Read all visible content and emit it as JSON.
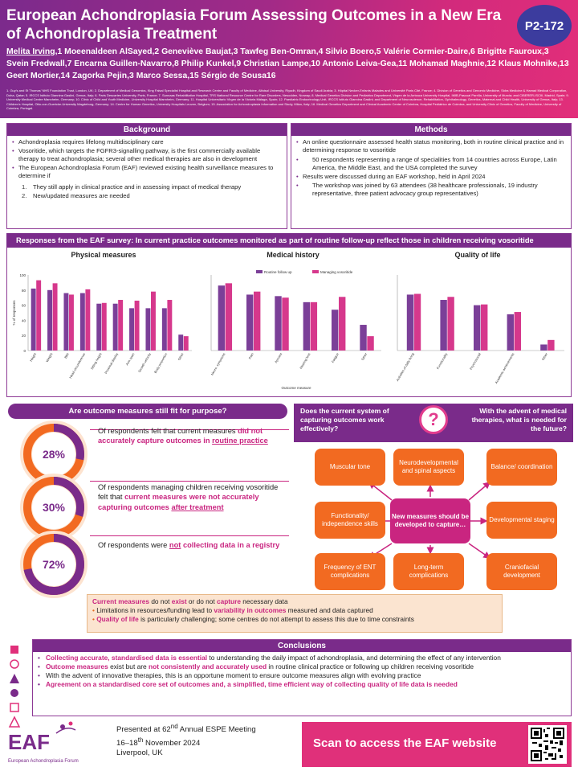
{
  "header": {
    "title": "European Achondroplasia Forum Assessing Outcomes in a New Era of Achondroplasia Treatment",
    "poster_id": "P2-172",
    "first_author": "Melita Irving,",
    "authors_rest": "1 Moeenaldeen AlSayed,2 Geneviève Baujat,3 Tawfeg Ben-Omran,4 Silvio Boero,5 Valérie Cormier-Daire,6 Brigitte Fauroux,3 Svein Fredwall,7 Encarna Guillen-Navarro,8 Philip Kunkel,9 Christian Lampe,10 Antonio Leiva-Gea,11 Mohamad Maghnie,12 Klaus Mohnike,13 Geert Mortier,14 Zagorka Pejin,3 Marco Sessa,15 Sérgio de Sousa16",
    "affiliations": "1. Guy's and St Thomas' NHS Foundation Trust, London, UK; 2. Department of Medical Genomics, King Faisal Specialist Hospital and Research Centre and Faculty of Medicine, Alfaisal University, Riyadh, Kingdom of Saudi Arabia; 3. Hôpital Necker-Enfants Malades and Université Paris Cité, France; 4. Division of Genetics and Genomic Medicine, Sidra Medicine & Hamad Medical Corporation, Doha, Qatar; 5. IRCCS Istituto Giannina Gaslini, Genoa, Italy; 6. Paris Descartes University, Paris, France; 7. Sunnaas Rehabilitation Hospital, TRS National Resource Centre for Rare Disorders, Nesodden, Norway; 8. Medical Genetics Division and Pediatrics Department, Virgen de la Arrixaca University Hospital, IMIB-Pascual Parrilla, University of Murcia; and CIBERER-ISCIII, Madrid, Spain; 9. University Medical Centre Mannheim, Germany; 10. Clinic of Child and Youth Medicine, University Hospital Mannheim, Germany; 11. Hospital Universitario Virgen de la Victoria Málaga, Spain; 12. Paediatric Endocrinology Unit, IRCCS Istituto Giannina Gaslini; and Department of Neuroscience, Rehabilitation, Ophthalmology, Genetics, Maternal and Child Health, University of Genoa, Italy; 13. Children's Hospital, Otto-von-Guericke-University Magdeburg, Germany; 14. Centre for Human Genetics, University Hospitals Leuven, Belgium; 15. Association for Achondroplasia Information and Study, Milan, Italy; 16. Medical Genetics Department and Clinical Academic Center of Coimbra, Hospital Pediátrico de Coimbra, and University Clinic of Genetics, Faculty of Medicine, University of Coimbra, Portugal."
  },
  "background": {
    "title": "Background",
    "b1": "Achondroplasia requires lifelong multidisciplinary care",
    "b2": "Vosoritide, which targets the FGFR3-signalling pathway, is the first commercially available therapy to treat achondroplasia; several other medical therapies are also in development",
    "b3": "The European Achondroplasia Forum (EAF) reviewed existing health surveillance measures to determine if",
    "s1": "They still apply in clinical practice and in assessing impact of medical therapy",
    "s2": "New/updated measures are needed"
  },
  "methods": {
    "title": "Methods",
    "m1": "An online questionnaire assessed health status monitoring, both in routine clinical practice and in determining response to vosoritide",
    "m1a": "50 respondents representing a range of specialities from 14 countries across Europe, Latin America, the Middle East, and the USA completed the survey",
    "m2": "Results were discussed during an EAF workshop, held in April 2024",
    "m2a": "The workshop was joined by 63 attendees (38 healthcare professionals, 19 industry representative, three patient advocacy group representatives)"
  },
  "survey_title": "Responses from the EAF survey: In current practice outcomes monitored as part of routine follow-up reflect those in children receiving vosoritide",
  "colors": {
    "routine": "#7b3f98",
    "vosoritide": "#d6388c",
    "orange": "#f26a21",
    "purple": "#7a2b8a",
    "pink": "#c92580"
  },
  "chart_data": [
    {
      "type": "bar",
      "title": "Physical measures",
      "ylabel": "% of responses",
      "ylim": [
        0,
        100
      ],
      "yticks": [
        0,
        20,
        40,
        60,
        80,
        100
      ],
      "categories": [
        "Height",
        "Weight",
        "BMI",
        "Head circumference",
        "Sitting height",
        "Proximal display",
        "Arm span",
        "Growth velocity",
        "Body proportion",
        "Other"
      ],
      "series": [
        {
          "name": "Routine follow up",
          "values": [
            82,
            80,
            76,
            76,
            62,
            62,
            56,
            56,
            56,
            21
          ]
        },
        {
          "name": "Managing vosoritide",
          "values": [
            93,
            89,
            74,
            81,
            63,
            67,
            66,
            78,
            67,
            19
          ]
        }
      ]
    },
    {
      "type": "bar",
      "title": "Medical history",
      "xlabel": "Outcome measure",
      "ylim": [
        0,
        100
      ],
      "legend": [
        "Routine follow up",
        "Managing vosoritide"
      ],
      "categories": [
        "Neuro. symptoms",
        "Pain",
        "Apnoea",
        "Hearing loss",
        "Fatigue",
        "Other"
      ],
      "series": [
        {
          "name": "Routine follow up",
          "values": [
            86,
            74,
            72,
            64,
            54,
            34
          ]
        },
        {
          "name": "Managing vosoritide",
          "values": [
            89,
            78,
            70,
            64,
            71,
            19
          ]
        }
      ]
    },
    {
      "type": "bar",
      "title": "Quality of life",
      "ylim": [
        0,
        100
      ],
      "categories": [
        "Activities of daily living",
        "Functionality",
        "Psychosocial",
        "Academic achievements",
        "Other"
      ],
      "series": [
        {
          "name": "Routine follow up",
          "values": [
            74,
            67,
            60,
            48,
            8
          ]
        },
        {
          "name": "Managing vosoritide",
          "values": [
            75,
            71,
            61,
            51,
            14
          ]
        }
      ]
    }
  ],
  "fit": {
    "title": "Are outcome measures still fit for purpose?",
    "stats": [
      {
        "pct": "28%",
        "value": 28,
        "t1": "Of respondents felt that current measures ",
        "t2": "did not accurately capture outcomes in ",
        "t3": "routine practice"
      },
      {
        "pct": "30%",
        "value": 30,
        "t1": "Of respondents managing children receiving vosoritide felt that ",
        "t2": "current measures were not accurately capturing outcomes ",
        "t3": "after treatment"
      },
      {
        "pct": "72%",
        "value": 72,
        "t1": "Of respondents were ",
        "t2": "not",
        "t3": " collecting data in a registry"
      }
    ]
  },
  "questions": {
    "q1": "Does the current system of capturing outcomes work effectively?",
    "q2": "With the advent of medical therapies, what is needed for the future?",
    "mark": "?",
    "center": "New measures should be developed to capture…",
    "boxes": [
      "Muscular tone",
      "Neurodevelopmental and spinal aspects",
      "Balance/ coordination",
      "Functionality/ independence skills",
      "Developmental staging",
      "Frequency of ENT complications",
      "Long-term complications",
      "Craniofacial development"
    ]
  },
  "summary": {
    "l1a": "Current measures",
    "l1b": " do not ",
    "l1c": "exist",
    "l1d": " or do not ",
    "l1e": "capture",
    "l1f": " necessary data",
    "l2a": "Limitations in resources/funding lead to ",
    "l2b": "variability in outcomes",
    "l2c": " measured and data captured",
    "l3a": "Quality of life",
    "l3b": " is particularly challenging; some centres do not attempt to assess this due to time constraints"
  },
  "conclusions": {
    "title": "Conclusions",
    "c1a": "Collecting accurate, standardised data is essential",
    "c1b": " to understanding the daily impact of achondroplasia, and determining the effect of any intervention",
    "c2a": "Outcome measures",
    "c2b": " exist but are ",
    "c2c": "not consistently and accurately used",
    "c2d": " in routine clinical practice or following up children receiving vosoritide",
    "c3": "With the advent of innovative therapies, this is an opportune moment to ensure outcome measures align with evolving practice",
    "c4": "Agreement on a standardised core set of outcomes and, a simplified, time efficient way of collecting quality of life data is needed"
  },
  "footer": {
    "logo_text": "EAF",
    "logo_sub": "European Achondroplasia Forum",
    "p1": "Presented at 62",
    "p1sup": "nd",
    "p1b": " Annual ESPE Meeting",
    "p2": "16–18",
    "p2sup": "th",
    "p2b": " November 2024",
    "p3": "Liverpool, UK",
    "scan": "Scan to access the EAF website"
  }
}
